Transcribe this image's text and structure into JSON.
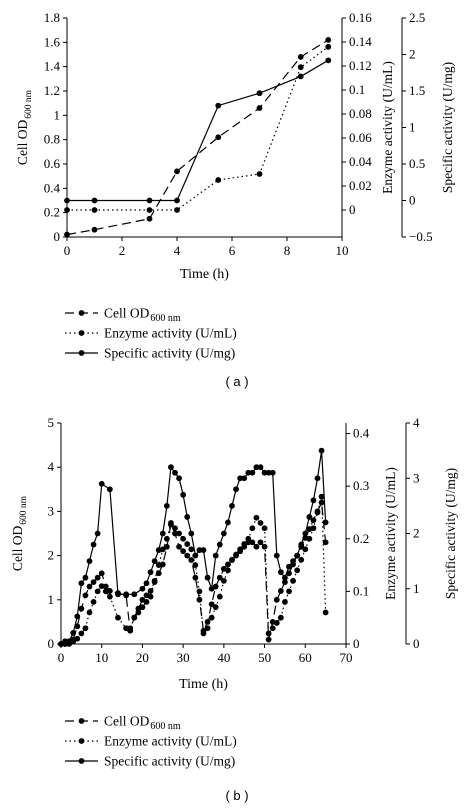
{
  "chart_data": [
    {
      "type": "line",
      "panel_label": "( a )",
      "xlabel": "Time (h)",
      "xlim": [
        0,
        10
      ],
      "xticks": [
        "0",
        "2",
        "4",
        "6",
        "8",
        "10"
      ],
      "axes": [
        {
          "id": "od",
          "label_main": "Cell OD",
          "label_sub": "600 nm",
          "ylim": [
            0,
            1.8
          ],
          "ticks": [
            "0",
            "0.2",
            "0.4",
            "0.6",
            "0.8",
            "1",
            "1.2",
            "1.4",
            "1.6",
            "1.8"
          ]
        },
        {
          "id": "enz",
          "label": "Enzyme activity (U/mL)",
          "ylim": [
            -0.0225,
            0.16
          ],
          "ticks": [
            "0",
            "0.02",
            "0.04",
            "0.06",
            "0.08",
            "0.1",
            "0.12",
            "0.14",
            "0.16"
          ]
        },
        {
          "id": "spec",
          "label": "Specific activity (U/mg)",
          "ylim": [
            -0.5,
            2.5
          ],
          "ticks": [
            "−0.5",
            "0",
            "0.5",
            "1",
            "1.5",
            "2",
            "2.5"
          ]
        }
      ],
      "series": [
        {
          "name_main": "Cell OD",
          "name_sub": "600 nm",
          "axis": "od",
          "style": "dashed",
          "x": [
            0,
            1,
            3,
            4,
            5.5,
            7,
            8.5,
            9.5
          ],
          "y": [
            0.02,
            0.06,
            0.15,
            0.54,
            0.82,
            1.06,
            1.48,
            1.62
          ]
        },
        {
          "name": "Enzyme activity (U/mL)",
          "axis": "enz",
          "style": "dotted",
          "x": [
            0,
            1,
            3,
            4,
            5.5,
            7,
            8.5,
            9.5
          ],
          "y": [
            0.0,
            0.0,
            0.0,
            0.0,
            0.025,
            0.03,
            0.119,
            0.136
          ]
        },
        {
          "name": "Specific activity (U/mg)",
          "axis": "spec",
          "style": "solid",
          "x": [
            0,
            1,
            3,
            4,
            5.5,
            7,
            8.5,
            9.5
          ],
          "y": [
            0,
            0,
            0,
            0,
            1.3,
            1.47,
            1.7,
            1.92
          ]
        }
      ]
    },
    {
      "type": "line",
      "panel_label": "( b )",
      "xlabel": "Time (h)",
      "xlim": [
        0,
        70
      ],
      "xticks": [
        "0",
        "10",
        "20",
        "30",
        "40",
        "50",
        "60",
        "70"
      ],
      "axes": [
        {
          "id": "od",
          "label_main": "Cell OD",
          "label_sub": "600 nm",
          "ylim": [
            0,
            5
          ],
          "ticks": [
            "0",
            "1",
            "2",
            "3",
            "4",
            "5"
          ]
        },
        {
          "id": "enz",
          "label": "Enzyme activity (U/mL)",
          "ylim": [
            0,
            0.42
          ],
          "ticks": [
            "0",
            "0.1",
            "0.2",
            "0.3",
            "0.4"
          ]
        },
        {
          "id": "spec",
          "label": "Specific activity (U/mg)",
          "ylim": [
            0,
            4
          ],
          "ticks": [
            "0",
            "1",
            "2",
            "3",
            "4"
          ]
        }
      ],
      "series": [
        {
          "name_main": "Cell OD",
          "name_sub": "600 nm",
          "axis": "od",
          "style": "dashed",
          "x": [
            0,
            1,
            2,
            3,
            4,
            5,
            6,
            7,
            8,
            9,
            10,
            11,
            12,
            14,
            16,
            17,
            18,
            19,
            20,
            21,
            22,
            23,
            24,
            25,
            26,
            27,
            28,
            29,
            30,
            31,
            32,
            33,
            34,
            35,
            36,
            37,
            38,
            39,
            40,
            41,
            42,
            43,
            44,
            45,
            46,
            47,
            48,
            49,
            50,
            51,
            52,
            53,
            54,
            55,
            56,
            57,
            58,
            59,
            60,
            61,
            62,
            63,
            64,
            65
          ],
          "y": [
            0,
            0,
            0.05,
            0.1,
            0.4,
            0.8,
            1.1,
            1.3,
            1.4,
            1.5,
            1.6,
            1.3,
            1.2,
            1.15,
            1.1,
            0.3,
            0.6,
            0.8,
            1.0,
            1.1,
            1.2,
            1.4,
            1.6,
            1.8,
            2.2,
            2.7,
            2.5,
            2.2,
            2.1,
            2.0,
            1.9,
            1.5,
            1.0,
            0.3,
            0.5,
            0.9,
            1.3,
            1.5,
            1.7,
            1.8,
            1.9,
            2.0,
            2.1,
            2.2,
            2.3,
            2.3,
            2.2,
            2.3,
            2.2,
            0.1,
            0.5,
            1.0,
            1.2,
            1.4,
            1.6,
            1.8,
            2.0,
            2.2,
            2.4,
            2.6,
            2.8,
            3.0,
            3.2,
            2.3
          ]
        },
        {
          "name": "Enzyme activity (U/mL)",
          "axis": "enz",
          "style": "dotted",
          "x": [
            0,
            1,
            2,
            3,
            4,
            5,
            6,
            7,
            8,
            9,
            10,
            11,
            12,
            14,
            16,
            17,
            18,
            19,
            20,
            21,
            22,
            23,
            24,
            25,
            26,
            27,
            28,
            29,
            30,
            31,
            32,
            33,
            34,
            35,
            36,
            37,
            38,
            39,
            40,
            41,
            42,
            43,
            44,
            45,
            46,
            47,
            48,
            49,
            50,
            51,
            52,
            53,
            54,
            55,
            56,
            57,
            58,
            59,
            60,
            61,
            62,
            63,
            64,
            65
          ],
          "y": [
            0,
            0,
            0,
            0.005,
            0.01,
            0.02,
            0.03,
            0.06,
            0.08,
            0.1,
            0.11,
            0.1,
            0.09,
            0.05,
            0.03,
            0.03,
            0.05,
            0.06,
            0.07,
            0.08,
            0.09,
            0.12,
            0.15,
            0.18,
            0.2,
            0.23,
            0.22,
            0.21,
            0.2,
            0.19,
            0.18,
            0.15,
            0.1,
            0.02,
            0.03,
            0.05,
            0.07,
            0.09,
            0.12,
            0.14,
            0.16,
            0.17,
            0.18,
            0.19,
            0.2,
            0.22,
            0.24,
            0.23,
            0.22,
            0.02,
            0.03,
            0.04,
            0.05,
            0.08,
            0.1,
            0.12,
            0.14,
            0.16,
            0.18,
            0.2,
            0.22,
            0.25,
            0.28,
            0.06
          ]
        },
        {
          "name": "Specific activity (U/mg)",
          "axis": "spec",
          "style": "solid",
          "x": [
            0,
            1,
            2,
            3,
            4,
            5,
            6,
            7,
            8,
            9,
            10,
            12,
            14,
            16,
            18,
            20,
            21,
            22,
            23,
            24,
            25,
            26,
            27,
            28,
            29,
            30,
            31,
            32,
            33,
            34,
            35,
            36,
            37,
            38,
            39,
            40,
            41,
            42,
            43,
            44,
            45,
            46,
            47,
            48,
            49,
            50,
            51,
            52,
            53,
            54,
            55,
            56,
            57,
            58,
            59,
            60,
            61,
            62,
            63,
            64,
            65
          ],
          "y": [
            0,
            0.05,
            0.05,
            0.2,
            0.5,
            1.1,
            1.2,
            1.5,
            1.8,
            2.0,
            2.9,
            2.8,
            0.9,
            0.9,
            0.9,
            1.0,
            1.1,
            1.3,
            1.5,
            1.7,
            2.0,
            2.5,
            3.2,
            3.1,
            3.0,
            2.7,
            2.3,
            2.0,
            1.6,
            1.7,
            1.7,
            1.2,
            1.0,
            1.6,
            1.8,
            2.0,
            2.2,
            2.5,
            2.8,
            3.0,
            3.0,
            3.1,
            3.1,
            3.2,
            3.2,
            3.1,
            3.1,
            3.1,
            1.6,
            1.3,
            1.2,
            1.4,
            1.5,
            1.6,
            1.8,
            2.0,
            2.3,
            2.6,
            3.0,
            3.5,
            2.2
          ]
        }
      ]
    }
  ]
}
